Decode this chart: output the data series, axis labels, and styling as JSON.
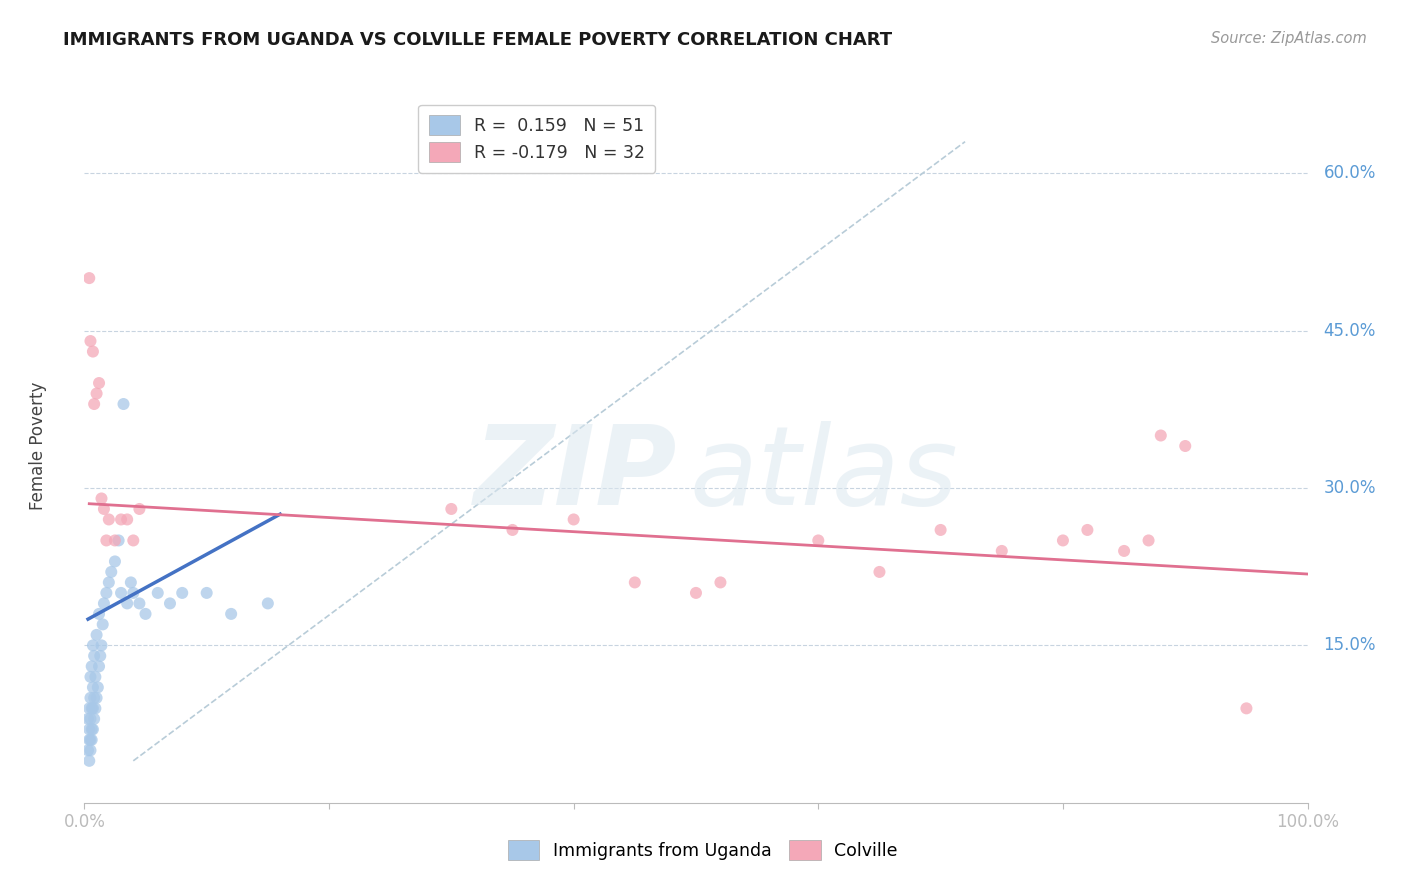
{
  "title": "IMMIGRANTS FROM UGANDA VS COLVILLE FEMALE POVERTY CORRELATION CHART",
  "source": "Source: ZipAtlas.com",
  "ylabel": "Female Poverty",
  "ytick_values": [
    0.15,
    0.3,
    0.45,
    0.6
  ],
  "xlim": [
    0.0,
    1.0
  ],
  "ylim": [
    0.0,
    0.68
  ],
  "legend_entries": [
    {
      "label": "R =  0.159   N = 51",
      "color": "#a8c8e8"
    },
    {
      "label": "R = -0.179   N = 32",
      "color": "#f4a8b8"
    }
  ],
  "blue_scatter_x": [
    0.003,
    0.003,
    0.004,
    0.004,
    0.004,
    0.004,
    0.005,
    0.005,
    0.005,
    0.005,
    0.005,
    0.006,
    0.006,
    0.006,
    0.006,
    0.007,
    0.007,
    0.007,
    0.007,
    0.008,
    0.008,
    0.008,
    0.009,
    0.009,
    0.01,
    0.01,
    0.011,
    0.012,
    0.012,
    0.013,
    0.014,
    0.015,
    0.016,
    0.018,
    0.02,
    0.022,
    0.025,
    0.028,
    0.03,
    0.032,
    0.035,
    0.038,
    0.04,
    0.045,
    0.05,
    0.06,
    0.07,
    0.08,
    0.1,
    0.12,
    0.15
  ],
  "blue_scatter_y": [
    0.05,
    0.08,
    0.04,
    0.06,
    0.07,
    0.09,
    0.05,
    0.06,
    0.08,
    0.1,
    0.12,
    0.06,
    0.07,
    0.09,
    0.13,
    0.07,
    0.09,
    0.11,
    0.15,
    0.08,
    0.1,
    0.14,
    0.09,
    0.12,
    0.1,
    0.16,
    0.11,
    0.13,
    0.18,
    0.14,
    0.15,
    0.17,
    0.19,
    0.2,
    0.21,
    0.22,
    0.23,
    0.25,
    0.2,
    0.38,
    0.19,
    0.21,
    0.2,
    0.19,
    0.18,
    0.2,
    0.19,
    0.2,
    0.2,
    0.18,
    0.19
  ],
  "pink_scatter_x": [
    0.004,
    0.005,
    0.007,
    0.008,
    0.01,
    0.012,
    0.014,
    0.016,
    0.018,
    0.02,
    0.025,
    0.03,
    0.035,
    0.04,
    0.045,
    0.3,
    0.35,
    0.4,
    0.45,
    0.5,
    0.52,
    0.6,
    0.65,
    0.7,
    0.75,
    0.8,
    0.82,
    0.85,
    0.87,
    0.88,
    0.9,
    0.95
  ],
  "pink_scatter_y": [
    0.5,
    0.44,
    0.43,
    0.38,
    0.39,
    0.4,
    0.29,
    0.28,
    0.25,
    0.27,
    0.25,
    0.27,
    0.27,
    0.25,
    0.28,
    0.28,
    0.26,
    0.27,
    0.21,
    0.2,
    0.21,
    0.25,
    0.22,
    0.26,
    0.24,
    0.25,
    0.26,
    0.24,
    0.25,
    0.35,
    0.34,
    0.09
  ],
  "blue_line_x": [
    0.003,
    0.16
  ],
  "blue_line_y": [
    0.175,
    0.275
  ],
  "pink_line_x": [
    0.004,
    1.0
  ],
  "pink_line_y": [
    0.285,
    0.218
  ],
  "dashed_line_x": [
    0.04,
    0.72
  ],
  "dashed_line_y": [
    0.04,
    0.63
  ],
  "blue_color": "#a8c8e8",
  "pink_color": "#f4a8b8",
  "blue_line_color": "#4472c4",
  "pink_line_color": "#e07090",
  "dashed_line_color": "#b8ccd8",
  "background_color": "#ffffff",
  "grid_color": "#c8d4e0",
  "title_fontsize": 13,
  "axis_label_color": "#5b9bd5",
  "scatter_size": 75,
  "scatter_alpha": 0.75
}
